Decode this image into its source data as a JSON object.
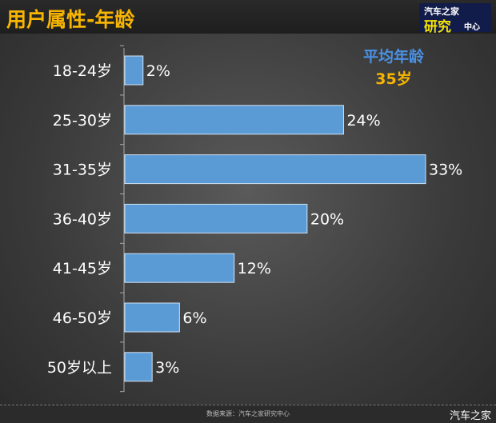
{
  "header": {
    "title": "用户属性-年龄",
    "logo": {
      "line1": "汽车之家",
      "line2": "研究",
      "line3": "中心"
    }
  },
  "annotation": {
    "label": "平均年龄",
    "value": "35岁"
  },
  "footer": {
    "source": "数据来源：汽车之家研究中心",
    "brand": "汽车之家"
  },
  "colors": {
    "bar": "#5b9bd5",
    "title": "#f7b500",
    "annotation_label": "#4a90e2",
    "annotation_value": "#f7b500"
  },
  "chart_data": {
    "type": "bar",
    "orientation": "horizontal",
    "title": "用户属性-年龄",
    "categories": [
      "18-24岁",
      "25-30岁",
      "31-35岁",
      "36-40岁",
      "41-45岁",
      "46-50岁",
      "50岁以上"
    ],
    "values": [
      2,
      24,
      33,
      20,
      12,
      6,
      3
    ],
    "data_labels": [
      "2%",
      "24%",
      "33%",
      "20%",
      "12%",
      "6%",
      "3%"
    ],
    "xlim": [
      0,
      35
    ],
    "grid": false,
    "legend": "none"
  }
}
